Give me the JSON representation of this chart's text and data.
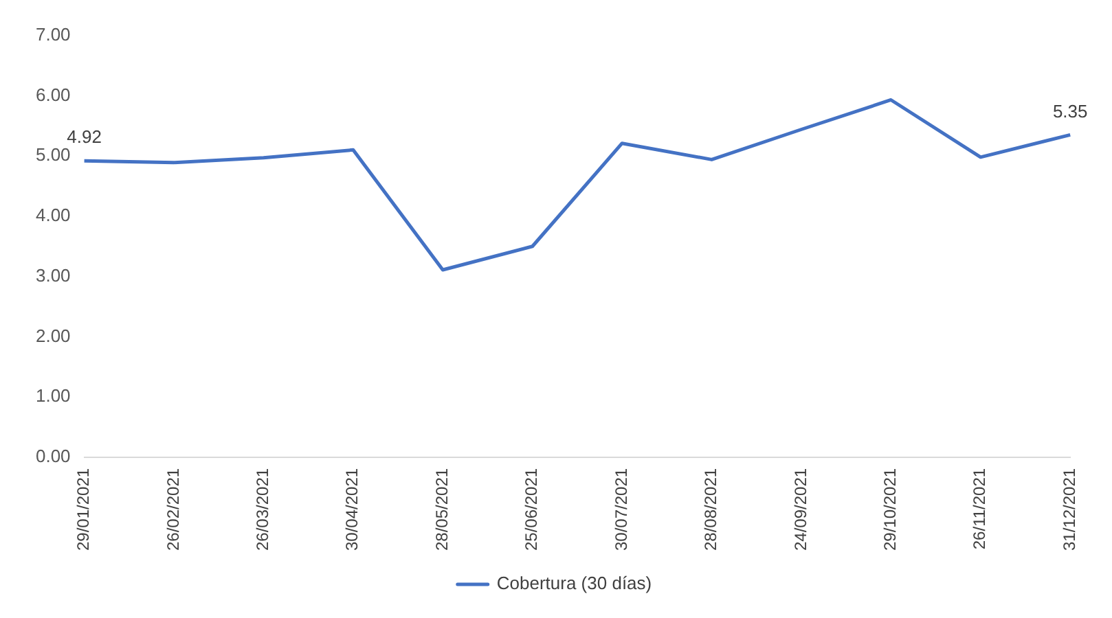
{
  "chart_data": {
    "type": "line",
    "categories": [
      "29/01/2021",
      "26/02/2021",
      "26/03/2021",
      "30/04/2021",
      "28/05/2021",
      "25/06/2021",
      "30/07/2021",
      "28/08/2021",
      "24/09/2021",
      "29/10/2021",
      "26/11/2021",
      "31/12/2021"
    ],
    "series": [
      {
        "name": "Cobertura (30 días)",
        "color": "#4472c4",
        "values": [
          4.92,
          4.89,
          4.97,
          5.1,
          3.11,
          3.5,
          5.21,
          4.94,
          5.44,
          5.93,
          4.98,
          5.35
        ],
        "value_labels": [
          "4.92",
          null,
          null,
          null,
          null,
          null,
          null,
          null,
          null,
          null,
          null,
          "5.35"
        ]
      }
    ],
    "ylim": [
      0,
      7
    ],
    "yticks": [
      {
        "value": 0,
        "label": "0.00"
      },
      {
        "value": 1,
        "label": "1.00"
      },
      {
        "value": 2,
        "label": "2.00"
      },
      {
        "value": 3,
        "label": "3.00"
      },
      {
        "value": 4,
        "label": "4.00"
      },
      {
        "value": 5,
        "label": "5.00"
      },
      {
        "value": 6,
        "label": "6.00"
      },
      {
        "value": 7,
        "label": "7.00"
      }
    ],
    "grid": false,
    "legend": "bottom",
    "marker": "none",
    "line_style": "solid"
  }
}
